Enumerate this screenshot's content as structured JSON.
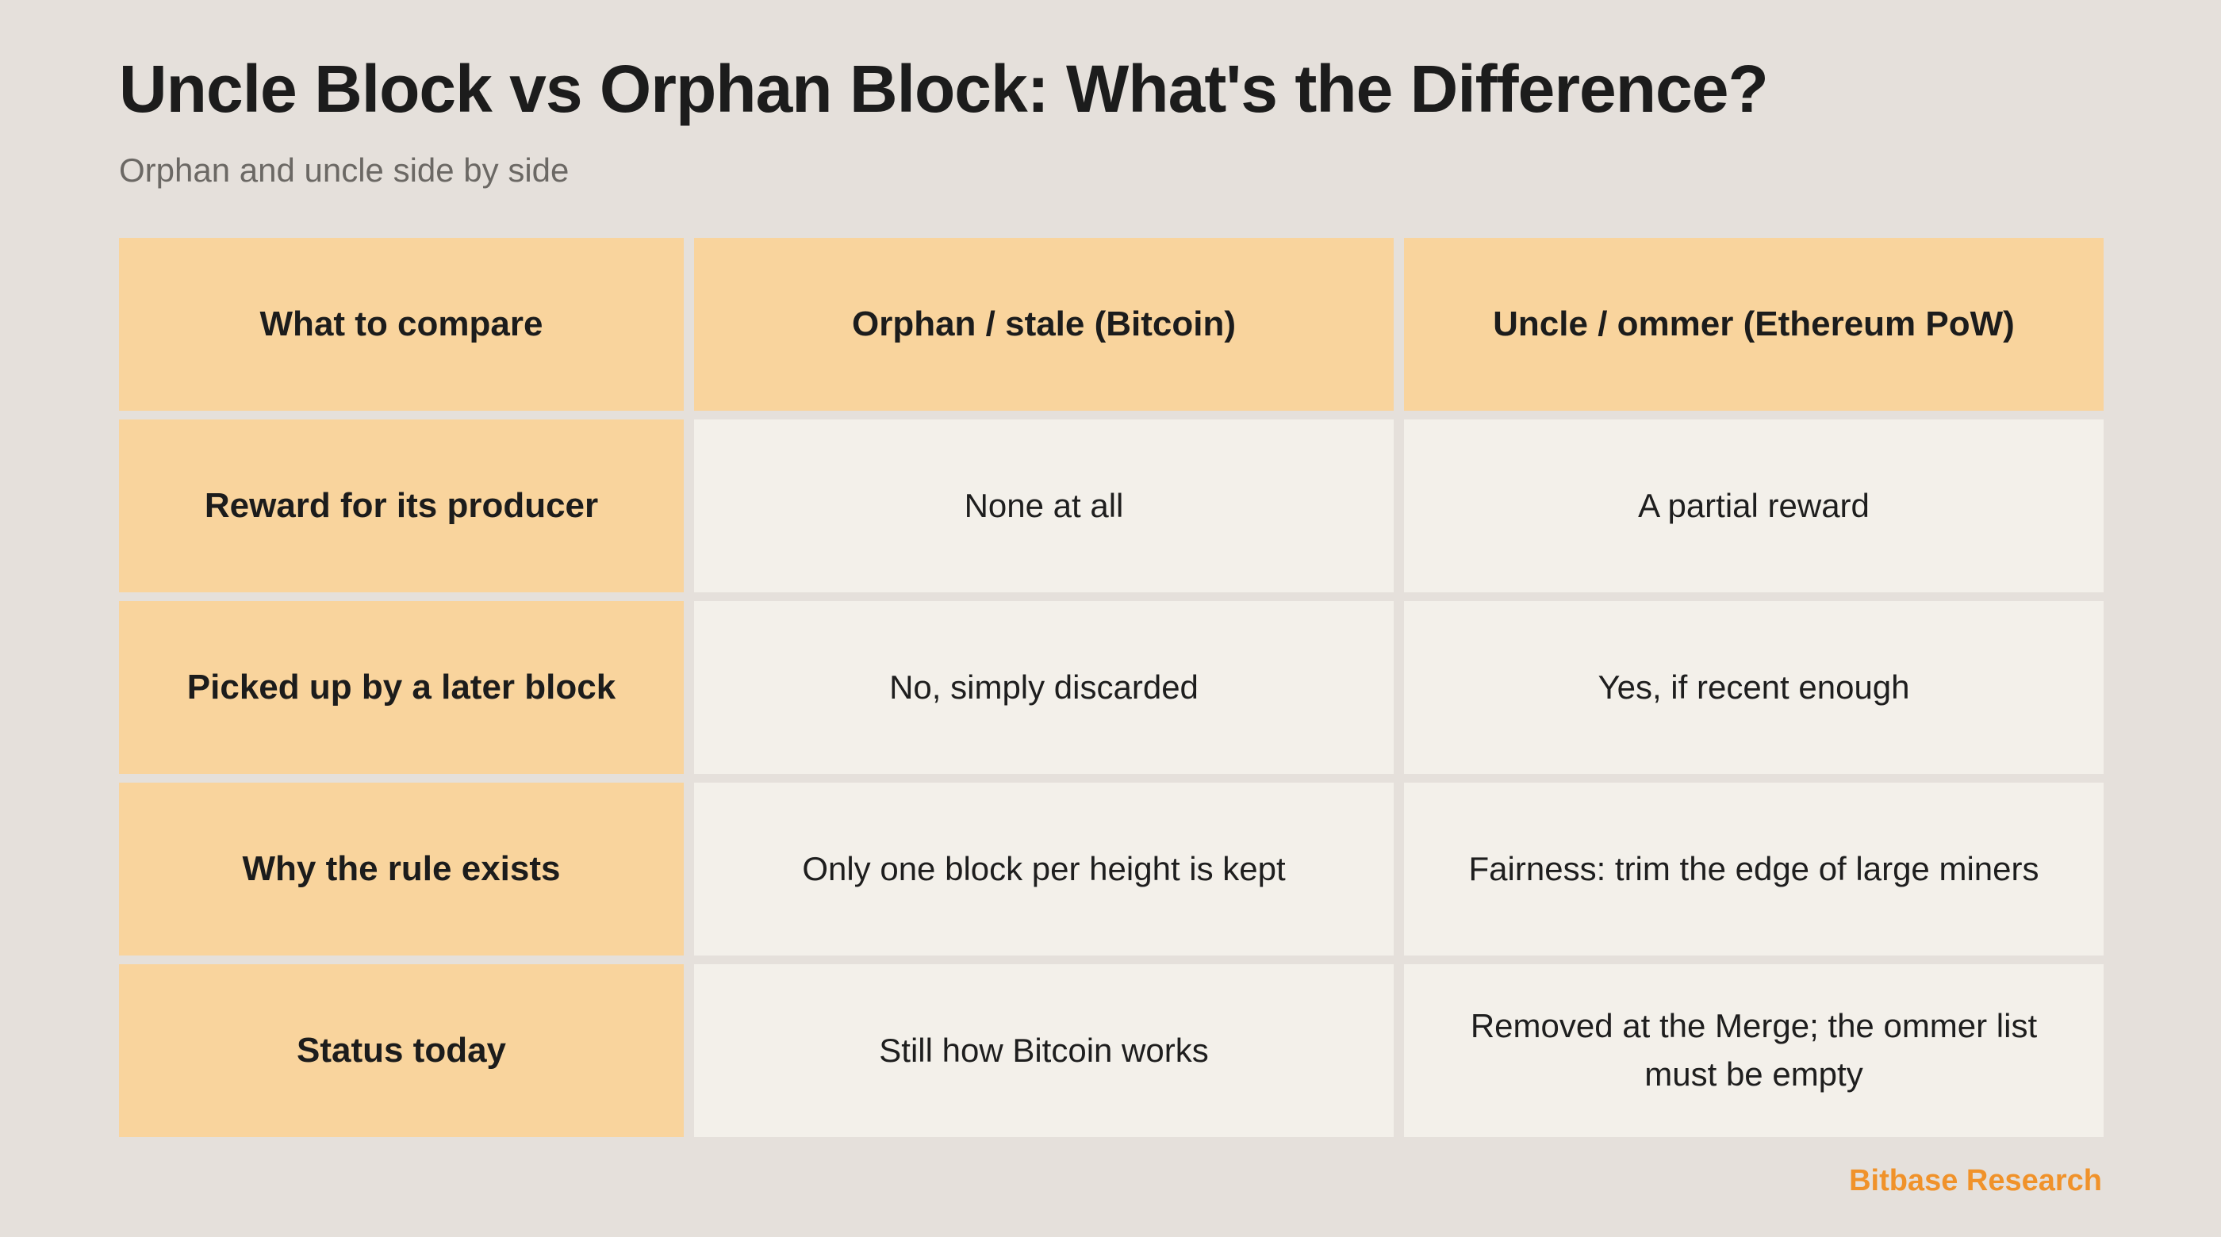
{
  "page": {
    "title": "Uncle Block vs Orphan Block: What's the Difference?",
    "subtitle": "Orphan and uncle side by side",
    "brand": "Bitbase Research"
  },
  "table": {
    "headers": [
      "What to compare",
      "Orphan / stale (Bitcoin)",
      "Uncle / ommer (Ethereum PoW)"
    ],
    "rows": [
      [
        "Reward for its producer",
        "None at all",
        "A partial reward"
      ],
      [
        "Picked up by a later block",
        "No, simply discarded",
        "Yes, if recent enough"
      ],
      [
        "Why the rule exists",
        "Only one block per height is kept",
        "Fairness: trim the edge of large miners"
      ],
      [
        "Status today",
        "Still how Bitcoin works",
        "Removed at the Merge; the ommer list must be empty"
      ]
    ]
  },
  "colors": {
    "background": "#e5e0db",
    "header_fill": "#f9d49d",
    "body_fill": "#f3f0ea",
    "accent": "#f0922a"
  }
}
